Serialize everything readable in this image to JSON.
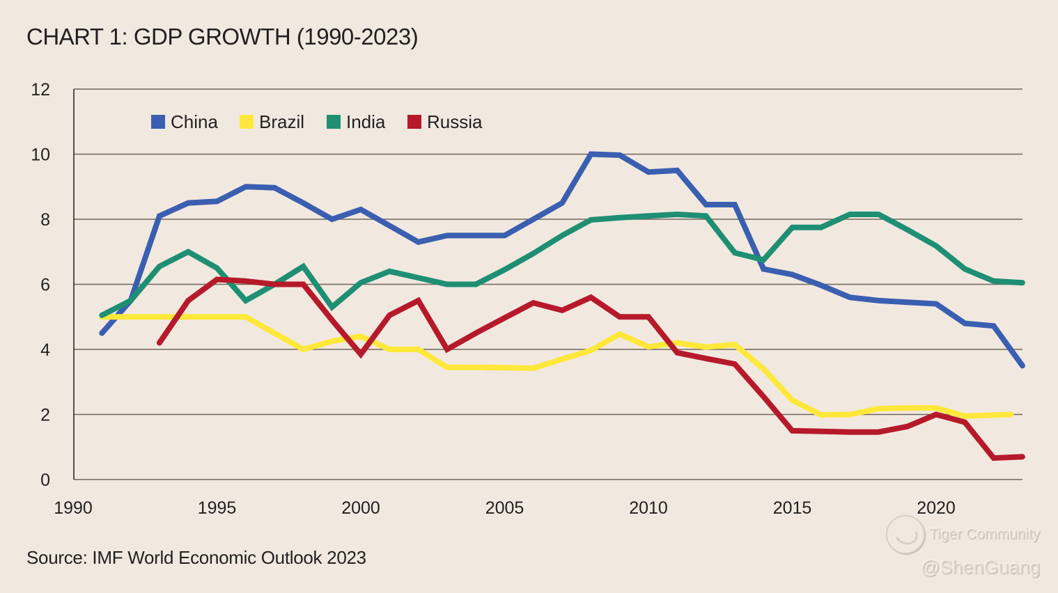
{
  "chart_data": {
    "type": "line",
    "title": "CHART 1: GDP GROWTH (1990-2023)",
    "xlabel": "",
    "ylabel": "",
    "xlim": [
      1990,
      2023
    ],
    "ylim": [
      0,
      12
    ],
    "x_ticks": [
      "1990",
      "1995",
      "2000",
      "2005",
      "2010",
      "2015",
      "2020"
    ],
    "y_ticks": [
      "0",
      "2",
      "4",
      "6",
      "8",
      "10",
      "12"
    ],
    "grid": "horizontal",
    "legend_position": "top-left",
    "series": [
      {
        "name": "China",
        "color": "#3a5fb0",
        "x": [
          1991,
          1992,
          1993,
          1994,
          1995,
          1996,
          1997,
          1998,
          1999,
          2000,
          2001,
          2002,
          2003,
          2004,
          2005,
          2006,
          2007,
          2008,
          2009,
          2010,
          2011,
          2012,
          2013,
          2014,
          2015,
          2016,
          2017,
          2018,
          2019,
          2020,
          2021,
          2022,
          2023
        ],
        "values": [
          4.5,
          5.5,
          8.1,
          8.5,
          8.55,
          9.0,
          8.97,
          8.5,
          8.0,
          8.3,
          7.8,
          7.3,
          7.5,
          7.5,
          7.5,
          8.0,
          8.5,
          10.0,
          9.97,
          9.45,
          9.5,
          8.45,
          8.45,
          6.47,
          6.3,
          5.97,
          5.6,
          5.5,
          5.45,
          5.4,
          4.8,
          4.72,
          3.5
        ]
      },
      {
        "name": "Brazil",
        "color": "#ffe83a",
        "x": [
          1991,
          1992,
          1993,
          1994,
          1995,
          1996,
          1997,
          1998,
          1999,
          2000,
          2001,
          2002,
          2003,
          2004,
          2005,
          2006,
          2007,
          2008,
          2009,
          2010,
          2011,
          2012,
          2013,
          2014,
          2015,
          2016,
          2017,
          2018,
          2019,
          2020,
          2021,
          2022.6
        ],
        "values": [
          5.0,
          5.0,
          5.0,
          5.0,
          5.0,
          5.0,
          4.5,
          4.0,
          4.25,
          4.4,
          4.0,
          4.0,
          3.45,
          3.45,
          3.44,
          3.42,
          3.7,
          3.97,
          4.47,
          4.08,
          4.2,
          4.07,
          4.15,
          3.4,
          2.44,
          1.99,
          2.0,
          2.18,
          2.2,
          2.2,
          1.95,
          2.0
        ]
      },
      {
        "name": "India",
        "color": "#1f8f74",
        "x": [
          1991,
          1992,
          1993,
          1994,
          1995,
          1996,
          1997,
          1998,
          1999,
          2000,
          2001,
          2002,
          2003,
          2004,
          2005,
          2006,
          2007,
          2008,
          2009,
          2010,
          2011,
          2012,
          2013,
          2014,
          2015,
          2016,
          2017,
          2018,
          2019,
          2020,
          2021,
          2022,
          2023
        ],
        "values": [
          5.05,
          5.5,
          6.55,
          7.0,
          6.5,
          5.5,
          6.0,
          6.55,
          5.3,
          6.05,
          6.4,
          6.2,
          6.0,
          6.0,
          6.45,
          6.95,
          7.5,
          7.98,
          8.05,
          8.1,
          8.15,
          8.1,
          6.97,
          6.75,
          7.75,
          7.75,
          8.15,
          8.15,
          7.68,
          7.18,
          6.47,
          6.1,
          6.05
        ]
      },
      {
        "name": "Russia",
        "color": "#b5192a",
        "x": [
          1993,
          1994,
          1995,
          1996,
          1997,
          1998,
          1999,
          2000,
          2001,
          2002,
          2003,
          2004,
          2005,
          2006,
          2007,
          2008,
          2009,
          2010,
          2011,
          2012,
          2013,
          2014,
          2015,
          2016,
          2017,
          2018,
          2019,
          2020,
          2021,
          2022,
          2023
        ],
        "values": [
          4.2,
          5.5,
          6.15,
          6.1,
          6.0,
          6.0,
          4.9,
          3.85,
          5.05,
          5.5,
          4.0,
          4.5,
          4.97,
          5.43,
          5.2,
          5.6,
          5.0,
          5.0,
          3.9,
          3.72,
          3.55,
          2.55,
          1.5,
          1.48,
          1.46,
          1.46,
          1.63,
          2.0,
          1.76,
          0.66,
          0.7
        ]
      }
    ]
  },
  "source": "Source: IMF World Economic Outlook 2023",
  "watermark": {
    "brand": "Tiger Community",
    "user": "@ShenGuang"
  }
}
